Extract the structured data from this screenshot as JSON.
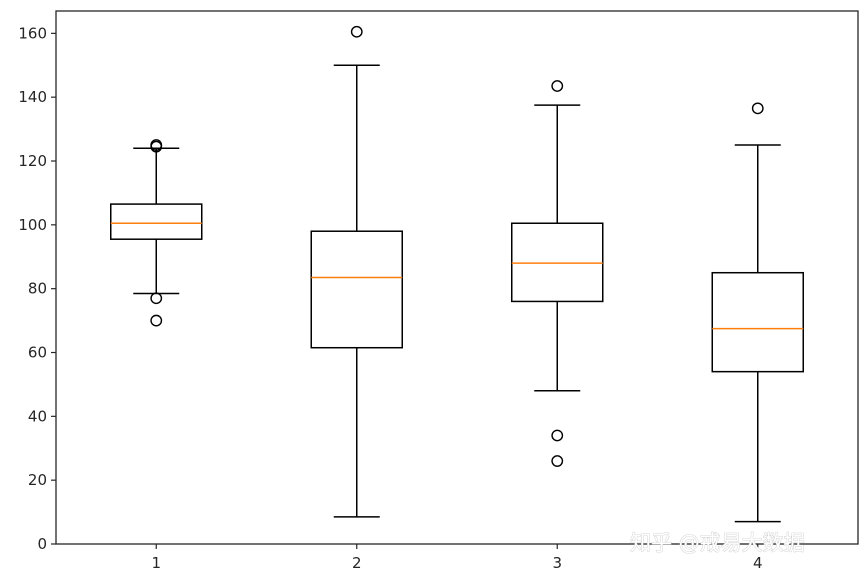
{
  "chart_data": {
    "type": "boxplot",
    "categories": [
      "1",
      "2",
      "3",
      "4"
    ],
    "boxes": [
      {
        "label": "1",
        "whisker_low": 78.5,
        "q1": 95.5,
        "median": 100.5,
        "q3": 106.5,
        "whisker_high": 124,
        "outliers": [
          124.5,
          125,
          77,
          70
        ]
      },
      {
        "label": "2",
        "whisker_low": 8.5,
        "q1": 61.5,
        "median": 83.5,
        "q3": 98,
        "whisker_high": 150,
        "outliers": [
          160.5
        ]
      },
      {
        "label": "3",
        "whisker_low": 48,
        "q1": 76,
        "median": 88,
        "q3": 100.5,
        "whisker_high": 137.5,
        "outliers": [
          143.5,
          34,
          26
        ]
      },
      {
        "label": "4",
        "whisker_low": 7,
        "q1": 54,
        "median": 67.5,
        "q3": 85,
        "whisker_high": 125,
        "outliers": [
          136.5
        ]
      }
    ],
    "ylim": [
      0,
      167
    ],
    "yticks": [
      "0",
      "20",
      "40",
      "60",
      "80",
      "100",
      "120",
      "140",
      "160"
    ],
    "title": "",
    "xlabel": "",
    "ylabel": "",
    "grid": false,
    "colors": {
      "box": "#000000",
      "median": "#ff7f0e",
      "axes": "#262626"
    }
  },
  "watermark": "知乎 @戒易大数据"
}
